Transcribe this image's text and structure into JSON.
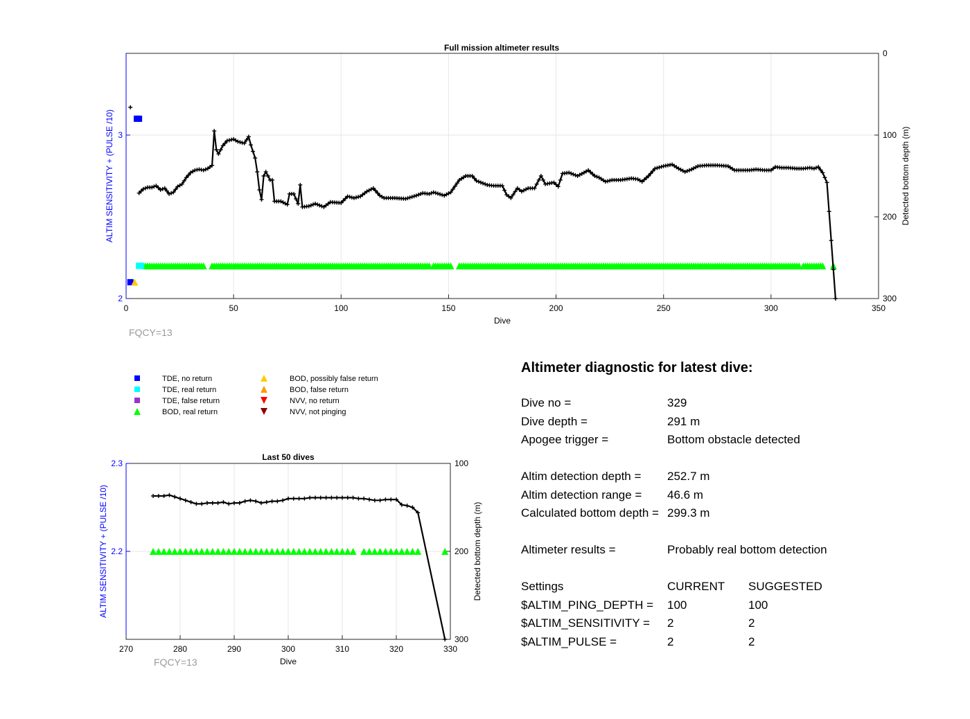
{
  "chart_data": [
    {
      "type": "scatter",
      "title": "Full mission altimeter results",
      "xlabel": "Dive",
      "ylabel_left": "ALTIM SENSITIVITY + (PULSE /10)",
      "ylabel_right": "Detected bottom depth (m)",
      "xlim": [
        0,
        350
      ],
      "ylim_left": [
        2,
        3.5
      ],
      "ylim_right": [
        0,
        300
      ],
      "right_axis_reversed": true,
      "xticks": [
        "0",
        "50",
        "100",
        "150",
        "200",
        "250",
        "300",
        "350"
      ],
      "yticks_left": [
        "2",
        "3"
      ],
      "yticks_right": [
        "0",
        "100",
        "200",
        "300"
      ],
      "grid": true,
      "annotation": "FQCY=13",
      "colors": {
        "axis_left": "#0000ff",
        "depth": "#000000",
        "bod_real": "#00ff00",
        "tde_real": "#00ffff",
        "tde_none": "#0000ff",
        "bod_possible": "#ffcc00"
      },
      "depth_series": {
        "name": "Detected bottom depth",
        "keypoints": [
          [
            2,
            66
          ],
          [
            3,
            66
          ],
          [
            4,
            66
          ],
          [
            6,
            171
          ],
          [
            8,
            166
          ],
          [
            10,
            164
          ],
          [
            12,
            164
          ],
          [
            14,
            162
          ],
          [
            16,
            167
          ],
          [
            18,
            165
          ],
          [
            20,
            172
          ],
          [
            22,
            170
          ],
          [
            24,
            163
          ],
          [
            26,
            160
          ],
          [
            28,
            152
          ],
          [
            30,
            146
          ],
          [
            32,
            143
          ],
          [
            34,
            142
          ],
          [
            36,
            143
          ],
          [
            38,
            141
          ],
          [
            40,
            137
          ],
          [
            41,
            95
          ],
          [
            42,
            118
          ],
          [
            43,
            123
          ],
          [
            45,
            113
          ],
          [
            47,
            107
          ],
          [
            50,
            105
          ],
          [
            52,
            108
          ],
          [
            55,
            110
          ],
          [
            57,
            102
          ],
          [
            58,
            112
          ],
          [
            60,
            128
          ],
          [
            61,
            145
          ],
          [
            62,
            167
          ],
          [
            63,
            179
          ],
          [
            64,
            150
          ],
          [
            65,
            145
          ],
          [
            67,
            155
          ],
          [
            68,
            155
          ],
          [
            69,
            181
          ],
          [
            72,
            181
          ],
          [
            75,
            185
          ],
          [
            76,
            172
          ],
          [
            78,
            172
          ],
          [
            80,
            184
          ],
          [
            81,
            161
          ],
          [
            82,
            188
          ],
          [
            85,
            187
          ],
          [
            88,
            184
          ],
          [
            92,
            188
          ],
          [
            95,
            182
          ],
          [
            100,
            183
          ],
          [
            103,
            175
          ],
          [
            106,
            177
          ],
          [
            109,
            175
          ],
          [
            112,
            169
          ],
          [
            115,
            165
          ],
          [
            118,
            174
          ],
          [
            120,
            177
          ],
          [
            125,
            177
          ],
          [
            130,
            178
          ],
          [
            135,
            174
          ],
          [
            138,
            171
          ],
          [
            141,
            172
          ],
          [
            143,
            170
          ],
          [
            148,
            174
          ],
          [
            151,
            170
          ],
          [
            155,
            155
          ],
          [
            158,
            150
          ],
          [
            161,
            150
          ],
          [
            163,
            156
          ],
          [
            165,
            158
          ],
          [
            168,
            161
          ],
          [
            171,
            162
          ],
          [
            175,
            162
          ],
          [
            177,
            173
          ],
          [
            179,
            177
          ],
          [
            182,
            165
          ],
          [
            184,
            169
          ],
          [
            187,
            165
          ],
          [
            190,
            165
          ],
          [
            193,
            150
          ],
          [
            195,
            160
          ],
          [
            199,
            158
          ],
          [
            201,
            163
          ],
          [
            203,
            147
          ],
          [
            206,
            146
          ],
          [
            208,
            148
          ],
          [
            210,
            150
          ],
          [
            213,
            146
          ],
          [
            215,
            143
          ],
          [
            218,
            150
          ],
          [
            220,
            152
          ],
          [
            223,
            157
          ],
          [
            226,
            155
          ],
          [
            230,
            155
          ],
          [
            235,
            153
          ],
          [
            238,
            154
          ],
          [
            240,
            157
          ],
          [
            243,
            150
          ],
          [
            246,
            141
          ],
          [
            250,
            138
          ],
          [
            254,
            136
          ],
          [
            257,
            141
          ],
          [
            260,
            145
          ],
          [
            263,
            142
          ],
          [
            266,
            138
          ],
          [
            270,
            137
          ],
          [
            275,
            137
          ],
          [
            280,
            138
          ],
          [
            283,
            143
          ],
          [
            286,
            143
          ],
          [
            290,
            143
          ],
          [
            293,
            142
          ],
          [
            297,
            143
          ],
          [
            300,
            143
          ],
          [
            302,
            139
          ],
          [
            305,
            140
          ],
          [
            308,
            140
          ],
          [
            312,
            141
          ],
          [
            315,
            141
          ],
          [
            318,
            140
          ],
          [
            320,
            141
          ],
          [
            322,
            139
          ],
          [
            324,
            146
          ],
          [
            326,
            158
          ],
          [
            330,
            300
          ]
        ]
      },
      "bod_real_return_series": {
        "name": "BOD, real return",
        "segments": [
          [
            9,
            36
          ],
          [
            40,
            141
          ],
          [
            143,
            151
          ],
          [
            155,
            313
          ],
          [
            315,
            324
          ],
          [
            329,
            329
          ]
        ],
        "value": 2.2
      },
      "tde_real_return_series": {
        "name": "TDE, real return",
        "x": [
          6,
          7
        ],
        "value": 2.2
      },
      "tde_no_return_points": [
        [
          2,
          2.1
        ],
        [
          5,
          3.1
        ],
        [
          6,
          3.1
        ]
      ],
      "bod_possibly_false_points": [
        [
          4,
          2.1
        ]
      ]
    },
    {
      "type": "scatter",
      "title": "Last 50 dives",
      "xlabel": "Dive",
      "ylabel_left": "ALTIM SENSITIVITY + (PULSE /10)",
      "ylabel_right": "Detected bottom depth (m)",
      "xlim": [
        270,
        330
      ],
      "ylim_left": [
        2.1,
        2.3
      ],
      "ylim_right": [
        100,
        300
      ],
      "right_axis_reversed": true,
      "xticks": [
        "270",
        "280",
        "290",
        "300",
        "310",
        "320",
        "330"
      ],
      "yticks_left": [
        "2.2",
        "2.3"
      ],
      "yticks_right": [
        "100",
        "200",
        "300"
      ],
      "grid": true,
      "annotation": "FQCY=13",
      "depth_series": {
        "name": "Detected bottom depth",
        "keypoints": [
          [
            275,
            137
          ],
          [
            276,
            137
          ],
          [
            277,
            137
          ],
          [
            278,
            136
          ],
          [
            279,
            138
          ],
          [
            280,
            140
          ],
          [
            281,
            142
          ],
          [
            282,
            144
          ],
          [
            283,
            146
          ],
          [
            284,
            146
          ],
          [
            285,
            145
          ],
          [
            286,
            145
          ],
          [
            287,
            145
          ],
          [
            288,
            144
          ],
          [
            289,
            146
          ],
          [
            290,
            145
          ],
          [
            291,
            145
          ],
          [
            292,
            143
          ],
          [
            293,
            142
          ],
          [
            294,
            143
          ],
          [
            295,
            145
          ],
          [
            296,
            144
          ],
          [
            297,
            143
          ],
          [
            298,
            143
          ],
          [
            299,
            142
          ],
          [
            300,
            140
          ],
          [
            301,
            140
          ],
          [
            302,
            140
          ],
          [
            303,
            140
          ],
          [
            304,
            139
          ],
          [
            305,
            139
          ],
          [
            306,
            139
          ],
          [
            307,
            139
          ],
          [
            308,
            139
          ],
          [
            309,
            139
          ],
          [
            310,
            139
          ],
          [
            311,
            139
          ],
          [
            312,
            139
          ],
          [
            313,
            140
          ],
          [
            314,
            140
          ],
          [
            315,
            141
          ],
          [
            316,
            142
          ],
          [
            317,
            142
          ],
          [
            318,
            141
          ],
          [
            319,
            141
          ],
          [
            320,
            141
          ],
          [
            321,
            147
          ],
          [
            322,
            148
          ],
          [
            323,
            150
          ],
          [
            324,
            156
          ],
          [
            329,
            300
          ]
        ]
      },
      "bod_real_return_series": {
        "name": "BOD, real return",
        "segments": [
          [
            275,
            312
          ],
          [
            314,
            324
          ],
          [
            329,
            329
          ]
        ],
        "value": 2.2
      }
    }
  ],
  "legend": [
    {
      "label": "TDE, no return",
      "shape": "square",
      "color": "#0000ff"
    },
    {
      "label": "TDE, real return",
      "shape": "square",
      "color": "#00ffff"
    },
    {
      "label": "TDE, false return",
      "shape": "square",
      "color": "#9933cc"
    },
    {
      "label": "BOD, real return",
      "shape": "triangle-up",
      "color": "#00ff00"
    },
    {
      "label": "BOD, possibly false return",
      "shape": "triangle-up",
      "color": "#ffcc00"
    },
    {
      "label": "BOD, false return",
      "shape": "triangle-up",
      "color": "#ff9900"
    },
    {
      "label": "NVV, no return",
      "shape": "triangle-down",
      "color": "#ff0000"
    },
    {
      "label": "NVV, not pinging",
      "shape": "triangle-down",
      "color": "#8b0000"
    }
  ],
  "diagnostic": {
    "title": "Altimeter diagnostic for latest dive:",
    "dive_no_label": "Dive no =",
    "dive_no": "329",
    "dive_depth_label": "Dive depth =",
    "dive_depth": "291 m",
    "apogee_label": "Apogee trigger =",
    "apogee": "Bottom obstacle detected",
    "det_depth_label": "Altim detection depth =",
    "det_depth": "252.7 m",
    "det_range_label": "Altim detection range =",
    "det_range": "46.6 m",
    "calc_depth_label": "Calculated bottom depth =",
    "calc_depth": "299.3 m",
    "results_label": "Altimeter results =",
    "results": "Probably real bottom detection",
    "settings_label": "Settings",
    "current_label": "CURRENT",
    "suggested_label": "SUGGESTED",
    "settings": [
      {
        "name": "$ALTIM_PING_DEPTH =",
        "current": "100",
        "suggested": "100"
      },
      {
        "name": "$ALTIM_SENSITIVITY =",
        "current": "2",
        "suggested": "2"
      },
      {
        "name": "$ALTIM_PULSE =",
        "current": "2",
        "suggested": "2"
      }
    ]
  }
}
